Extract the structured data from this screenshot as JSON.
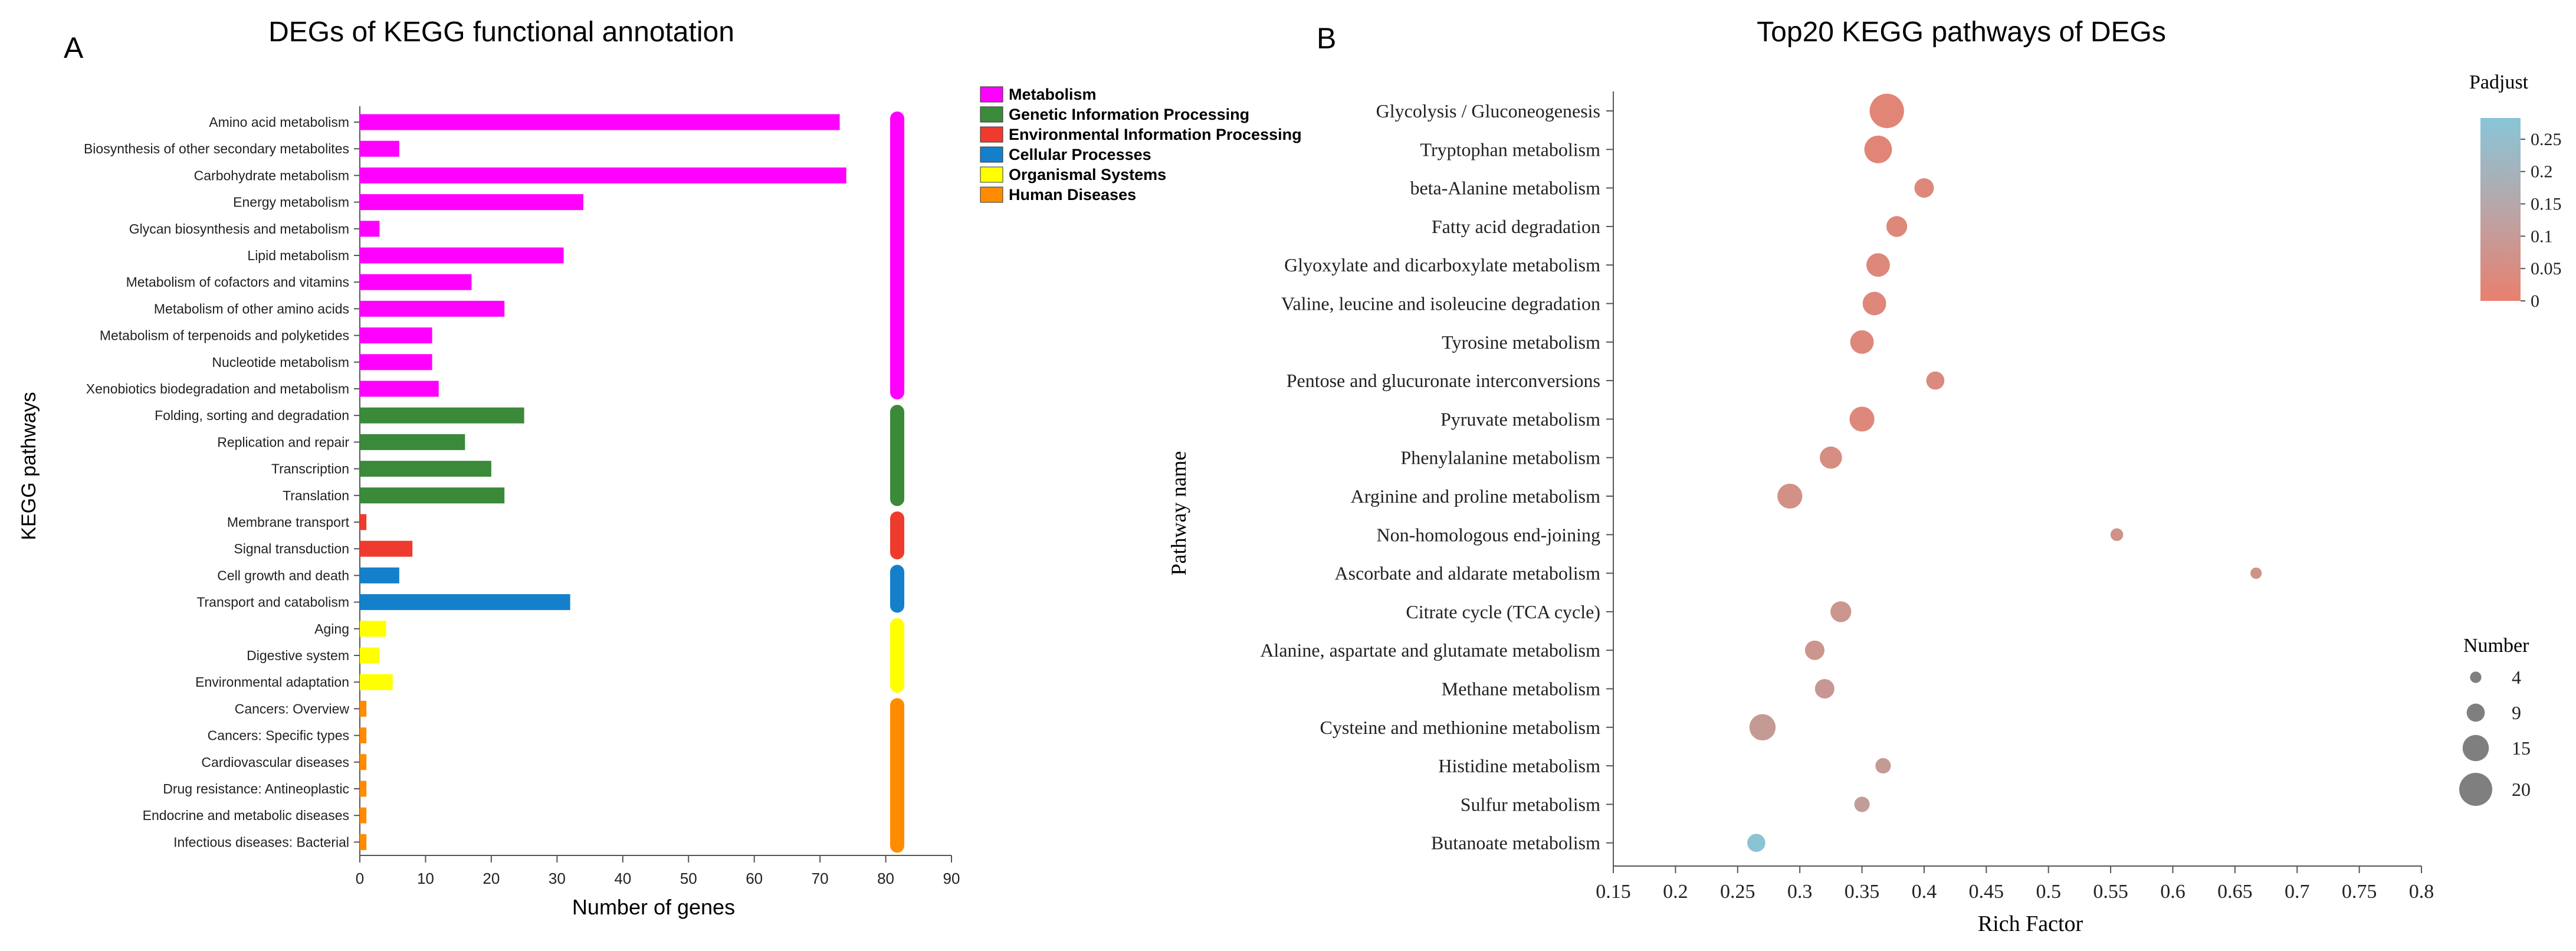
{
  "chart_data": [
    {
      "panel_label": "A",
      "type": "bar",
      "orientation": "horizontal",
      "title": "DEGs of  KEGG functional annotation",
      "xlabel": "Number of genes",
      "ylabel": "KEGG pathways",
      "xlim": [
        0,
        90
      ],
      "xticks": [
        0,
        10,
        20,
        30,
        40,
        50,
        60,
        70,
        80,
        90
      ],
      "legend_position": "right",
      "groups": [
        {
          "name": "Metabolism",
          "color": "#ff00ff",
          "first": 0,
          "last": 10
        },
        {
          "name": "Genetic Information Processing",
          "color": "#3a8a3a",
          "first": 11,
          "last": 14
        },
        {
          "name": "Environmental Information Processing",
          "color": "#ee3b2e",
          "first": 15,
          "last": 16
        },
        {
          "name": "Cellular Processes",
          "color": "#1480cc",
          "first": 17,
          "last": 18
        },
        {
          "name": "Organismal Systems",
          "color": "#ffff00",
          "first": 19,
          "last": 21
        },
        {
          "name": "Human Diseases",
          "color": "#ff8c00",
          "first": 22,
          "last": 27
        }
      ],
      "bars": [
        {
          "label": "Amino acid metabolism",
          "value": 73,
          "group": "Metabolism"
        },
        {
          "label": "Biosynthesis of other secondary metabolites",
          "value": 6,
          "group": "Metabolism"
        },
        {
          "label": "Carbohydrate metabolism",
          "value": 74,
          "group": "Metabolism"
        },
        {
          "label": "Energy metabolism",
          "value": 34,
          "group": "Metabolism"
        },
        {
          "label": "Glycan biosynthesis and metabolism",
          "value": 3,
          "group": "Metabolism"
        },
        {
          "label": "Lipid metabolism",
          "value": 31,
          "group": "Metabolism"
        },
        {
          "label": "Metabolism of cofactors and vitamins",
          "value": 17,
          "group": "Metabolism"
        },
        {
          "label": "Metabolism of other amino acids",
          "value": 22,
          "group": "Metabolism"
        },
        {
          "label": "Metabolism of terpenoids and polyketides",
          "value": 11,
          "group": "Metabolism"
        },
        {
          "label": "Nucleotide metabolism",
          "value": 11,
          "group": "Metabolism"
        },
        {
          "label": "Xenobiotics biodegradation and metabolism",
          "value": 12,
          "group": "Metabolism"
        },
        {
          "label": "Folding, sorting and degradation",
          "value": 25,
          "group": "Genetic Information Processing"
        },
        {
          "label": "Replication and repair",
          "value": 16,
          "group": "Genetic Information Processing"
        },
        {
          "label": "Transcription",
          "value": 20,
          "group": "Genetic Information Processing"
        },
        {
          "label": "Translation",
          "value": 22,
          "group": "Genetic Information Processing"
        },
        {
          "label": "Membrane transport",
          "value": 1,
          "group": "Environmental Information Processing"
        },
        {
          "label": "Signal transduction",
          "value": 8,
          "group": "Environmental Information Processing"
        },
        {
          "label": "Cell growth and death",
          "value": 6,
          "group": "Cellular Processes"
        },
        {
          "label": "Transport and catabolism",
          "value": 32,
          "group": "Cellular Processes"
        },
        {
          "label": "Aging",
          "value": 4,
          "group": "Organismal Systems"
        },
        {
          "label": "Digestive system",
          "value": 3,
          "group": "Organismal Systems"
        },
        {
          "label": "Environmental adaptation",
          "value": 5,
          "group": "Organismal Systems"
        },
        {
          "label": "Cancers: Overview",
          "value": 1,
          "group": "Human Diseases"
        },
        {
          "label": "Cancers: Specific types",
          "value": 1,
          "group": "Human Diseases"
        },
        {
          "label": "Cardiovascular diseases",
          "value": 1,
          "group": "Human Diseases"
        },
        {
          "label": "Drug resistance: Antineoplastic",
          "value": 1,
          "group": "Human Diseases"
        },
        {
          "label": "Endocrine and metabolic diseases",
          "value": 1,
          "group": "Human Diseases"
        },
        {
          "label": "Infectious diseases: Bacterial",
          "value": 1,
          "group": "Human Diseases"
        }
      ]
    },
    {
      "panel_label": "B",
      "type": "scatter",
      "title": "Top20 KEGG pathways of DEGs",
      "xlabel": "Rich Factor",
      "ylabel": "Pathway name",
      "xlim": [
        0.15,
        0.8
      ],
      "xticks": [
        "0.15",
        "0.2",
        "0.25",
        "0.3",
        "0.35",
        "0.4",
        "0.45",
        "0.5",
        "0.55",
        "0.6",
        "0.65",
        "0.7",
        "0.75",
        "0.8"
      ],
      "color_legend": {
        "title": "Padjust",
        "low_color": "#e8806e",
        "high_color": "#88c6d8",
        "ticks": [
          "0.25",
          "0.2",
          "0.15",
          "0.1",
          "0.05",
          "0"
        ],
        "range": [
          0,
          0.27
        ]
      },
      "size_legend": {
        "title": "Number",
        "values": [
          4,
          9,
          15,
          20
        ],
        "labels": [
          "4",
          "9",
          "15",
          "20"
        ]
      },
      "points": [
        {
          "pathway": "Glycolysis / Gluconeogenesis",
          "rich_factor": 0.37,
          "number": 21,
          "padjust": 0.02
        },
        {
          "pathway": "Tryptophan metabolism",
          "rich_factor": 0.363,
          "number": 16,
          "padjust": 0.02
        },
        {
          "pathway": "beta-Alanine metabolism",
          "rich_factor": 0.4,
          "number": 10,
          "padjust": 0.03
        },
        {
          "pathway": "Fatty acid degradation",
          "rich_factor": 0.378,
          "number": 11,
          "padjust": 0.03
        },
        {
          "pathway": "Glyoxylate and dicarboxylate metabolism",
          "rich_factor": 0.363,
          "number": 13,
          "padjust": 0.03
        },
        {
          "pathway": "Valine, leucine and isoleucine degradation",
          "rich_factor": 0.36,
          "number": 13,
          "padjust": 0.03
        },
        {
          "pathway": "Tyrosine metabolism",
          "rich_factor": 0.35,
          "number": 13,
          "padjust": 0.03
        },
        {
          "pathway": "Pentose and glucuronate interconversions",
          "rich_factor": 0.409,
          "number": 9,
          "padjust": 0.04
        },
        {
          "pathway": "Pyruvate metabolism",
          "rich_factor": 0.35,
          "number": 14,
          "padjust": 0.03
        },
        {
          "pathway": "Phenylalanine metabolism",
          "rich_factor": 0.325,
          "number": 12,
          "padjust": 0.05
        },
        {
          "pathway": "Arginine and proline metabolism",
          "rich_factor": 0.292,
          "number": 14,
          "padjust": 0.06
        },
        {
          "pathway": "Non-homologous end-joining",
          "rich_factor": 0.555,
          "number": 5,
          "padjust": 0.07
        },
        {
          "pathway": "Ascorbate and aldarate metabolism",
          "rich_factor": 0.667,
          "number": 4,
          "padjust": 0.07
        },
        {
          "pathway": "Citrate cycle (TCA cycle)",
          "rich_factor": 0.333,
          "number": 11,
          "padjust": 0.08
        },
        {
          "pathway": "Alanine, aspartate and glutamate metabolism",
          "rich_factor": 0.312,
          "number": 10,
          "padjust": 0.08
        },
        {
          "pathway": "Methane metabolism",
          "rich_factor": 0.32,
          "number": 10,
          "padjust": 0.09
        },
        {
          "pathway": "Cysteine and methionine metabolism",
          "rich_factor": 0.27,
          "number": 15,
          "padjust": 0.1
        },
        {
          "pathway": "Histidine metabolism",
          "rich_factor": 0.367,
          "number": 7,
          "padjust": 0.1
        },
        {
          "pathway": "Sulfur metabolism",
          "rich_factor": 0.35,
          "number": 7,
          "padjust": 0.11
        },
        {
          "pathway": "Butanoate metabolism",
          "rich_factor": 0.265,
          "number": 9,
          "padjust": 0.26
        }
      ]
    }
  ]
}
